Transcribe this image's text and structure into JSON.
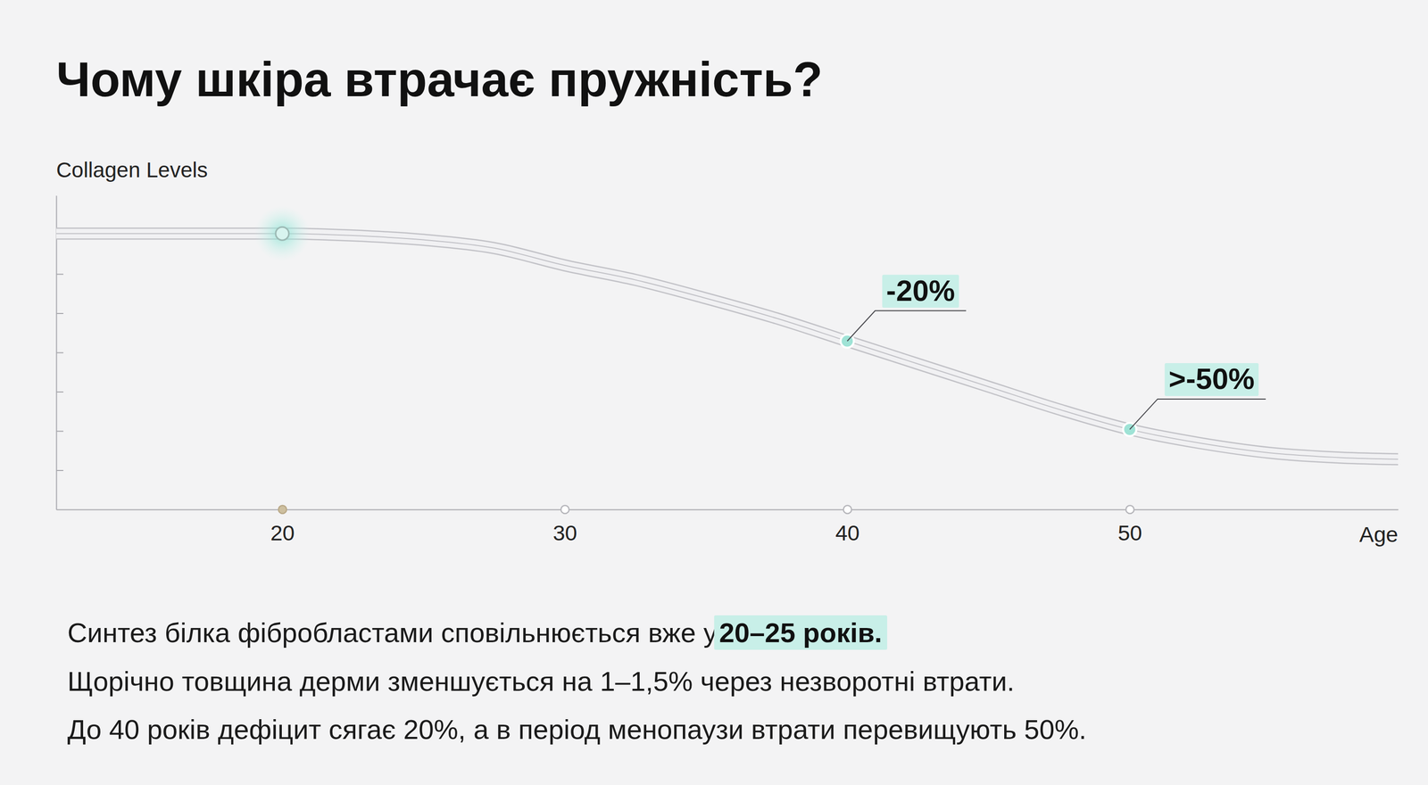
{
  "chart_data": {
    "type": "line",
    "title": "Чому шкіра втрачає пружність?",
    "y_label": "Collagen Levels",
    "x_label": "Age",
    "x": [
      12,
      15,
      20,
      22.5,
      25,
      27.5,
      30,
      32.5,
      35,
      37.5,
      40,
      42.5,
      45,
      47.5,
      50,
      52.5,
      55,
      57.5,
      59.5
    ],
    "values": [
      7.03,
      7.03,
      7.03,
      6.98,
      6.87,
      6.66,
      6.22,
      5.85,
      5.38,
      4.87,
      4.29,
      3.71,
      3.13,
      2.55,
      2.04,
      1.69,
      1.44,
      1.32,
      1.28
    ],
    "color": "#c2c2c7",
    "xlim": [
      12,
      59.5
    ],
    "ylim": [
      0,
      8
    ],
    "xticks": [
      20,
      30,
      40,
      50
    ],
    "yticks": [
      1,
      2,
      3,
      4,
      5,
      6,
      7
    ],
    "tick_labels": "x",
    "highlight": {
      "x": 20,
      "y": 7.03
    },
    "annotations": [
      {
        "x": 40,
        "y": 4.29,
        "text": "-20%"
      },
      {
        "x": 50,
        "y": 2.04,
        "text": ">-50%"
      }
    ]
  },
  "notes": [
    {
      "text": "Синтез білка фібробластами сповільнюється вже у ",
      "emphasis": "20–25 років."
    },
    {
      "text": "Щорічно товщина дерми зменшується на 1–1,5% через незворотні втрати."
    },
    {
      "text": "До 40 років дефіцит сягає 20%, а в період менопаузи втрати перевищують 50%."
    }
  ]
}
